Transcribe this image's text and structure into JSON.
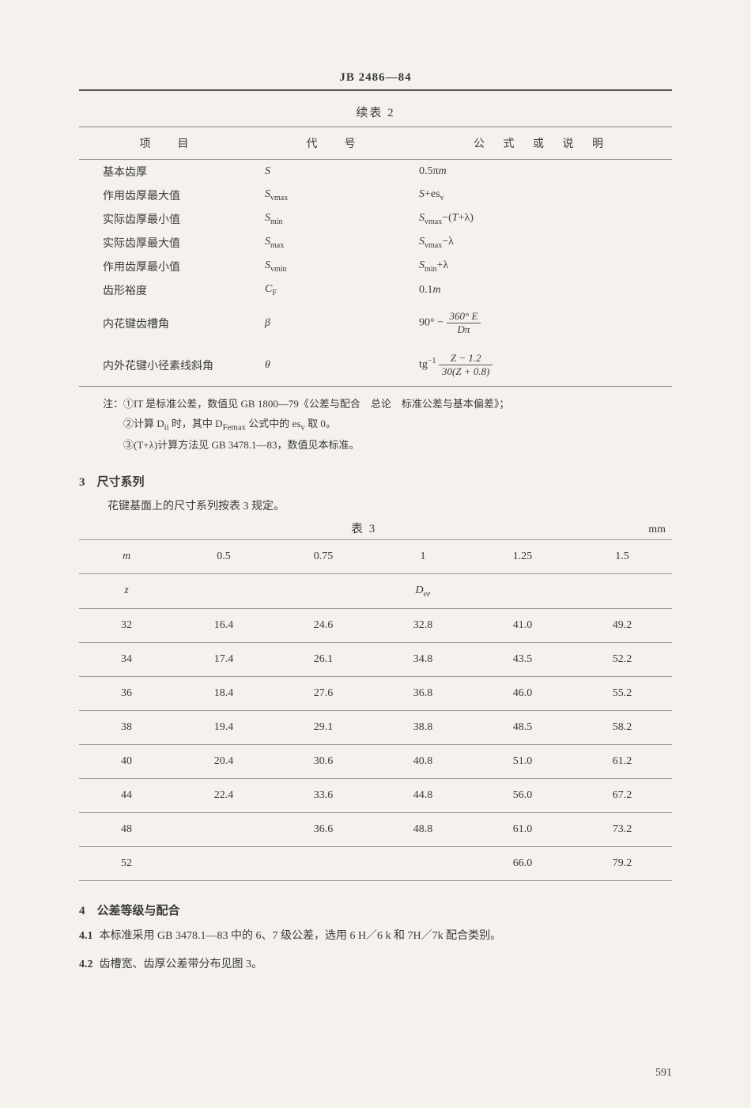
{
  "header": {
    "code": "JB 2486—84"
  },
  "table2": {
    "cont_title": "续表 2",
    "headers": {
      "c1": "项　目",
      "c2": "代　号",
      "c3": "公 式 或 说 明"
    },
    "rows": [
      {
        "c1": "基本齿厚",
        "c2_html": "<span class='symbol'>S</span>",
        "c3_html": "0.5π<span class='symbol'>m</span>"
      },
      {
        "c1": "作用齿厚最大值",
        "c2_html": "<span class='symbol'>S</span><span class='sub'>vmax</span>",
        "c3_html": "<span class='symbol'>S</span>+es<span class='sub'>v</span>"
      },
      {
        "c1": "实际齿厚最小值",
        "c2_html": "<span class='symbol'>S</span><span class='sub'>min</span>",
        "c3_html": "<span class='symbol'>S</span><span class='sub'>vmax</span>−(<span class='symbol'>T</span>+λ)"
      },
      {
        "c1": "实际齿厚最大值",
        "c2_html": "<span class='symbol'>S</span><span class='sub'>max</span>",
        "c3_html": "<span class='symbol'>S</span><span class='sub'>vmax</span>−λ"
      },
      {
        "c1": "作用齿厚最小值",
        "c2_html": "<span class='symbol'>S</span><span class='sub'>vmin</span>",
        "c3_html": "<span class='symbol'>S</span><span class='sub'>min</span>+λ"
      },
      {
        "c1": "齿形裕度",
        "c2_html": "<span class='symbol'>C</span><span class='sub'>F</span>",
        "c3_html": "0.1<span class='symbol'>m</span>"
      },
      {
        "c1": "内花键齿槽角",
        "c2_html": "<span class='symbol'>β</span>",
        "c3_html": "90° − <span class='frac'><span class='num'>360° <i>E</i></span><span class='den'><i>D</i>π</span></span>",
        "formula": true
      },
      {
        "c1": "内外花键小径素线斜角",
        "c2_html": "<span class='symbol'>θ</span>",
        "c3_html": "tg<sup style='font-size:10px'>−1</sup> <span class='frac'><span class='num'><i>Z</i> − 1.2</span><span class='den'>30(<i>Z</i> + 0.8)</span></span>",
        "formula": true
      }
    ],
    "notes": [
      "注：①IT 是标准公差，数值见 GB 1800—79《公差与配合　总论　标准公差与基本偏差》；",
      "　　②计算 D<sub>ii</sub> 时，其中 D<sub>Femax</sub> 公式中的 es<sub>v</sub> 取 0。",
      "　　③(T+λ)计算方法见 GB 3478.1—83，数值见本标准。"
    ]
  },
  "section3": {
    "head": "3　尺寸系列",
    "intro": "花键基面上的尺寸系列按表 3 规定。"
  },
  "table3": {
    "title": "表 3",
    "unit": "mm",
    "m_label": "m",
    "z_label": "z",
    "dee_label": "D<sub style='font-size:10px'>ee</sub>",
    "m_vals": [
      "0.5",
      "0.75",
      "1",
      "1.25",
      "1.5"
    ],
    "z_vals": [
      "32",
      "34",
      "36",
      "38",
      "40",
      "44",
      "48",
      "52"
    ],
    "data": [
      [
        "16.4",
        "24.6",
        "32.8",
        "41.0",
        "49.2"
      ],
      [
        "17.4",
        "26.1",
        "34.8",
        "43.5",
        "52.2"
      ],
      [
        "18.4",
        "27.6",
        "36.8",
        "46.0",
        "55.2"
      ],
      [
        "19.4",
        "29.1",
        "38.8",
        "48.5",
        "58.2"
      ],
      [
        "20.4",
        "30.6",
        "40.8",
        "51.0",
        "61.2"
      ],
      [
        "22.4",
        "33.6",
        "44.8",
        "56.0",
        "67.2"
      ],
      [
        "",
        "36.6",
        "48.8",
        "61.0",
        "73.2"
      ],
      [
        "",
        "",
        "",
        "66.0",
        "79.2"
      ]
    ]
  },
  "section4": {
    "head": "4　公差等级与配合",
    "p1": {
      "num": "4.1",
      "text": "本标准采用 GB 3478.1—83 中的 6、7 级公差，选用 6 H／6 k 和 7H／7k 配合类别。"
    },
    "p2": {
      "num": "4.2",
      "text": "齿槽宽、齿厚公差带分布见图 3。"
    }
  },
  "pagenum": "591"
}
